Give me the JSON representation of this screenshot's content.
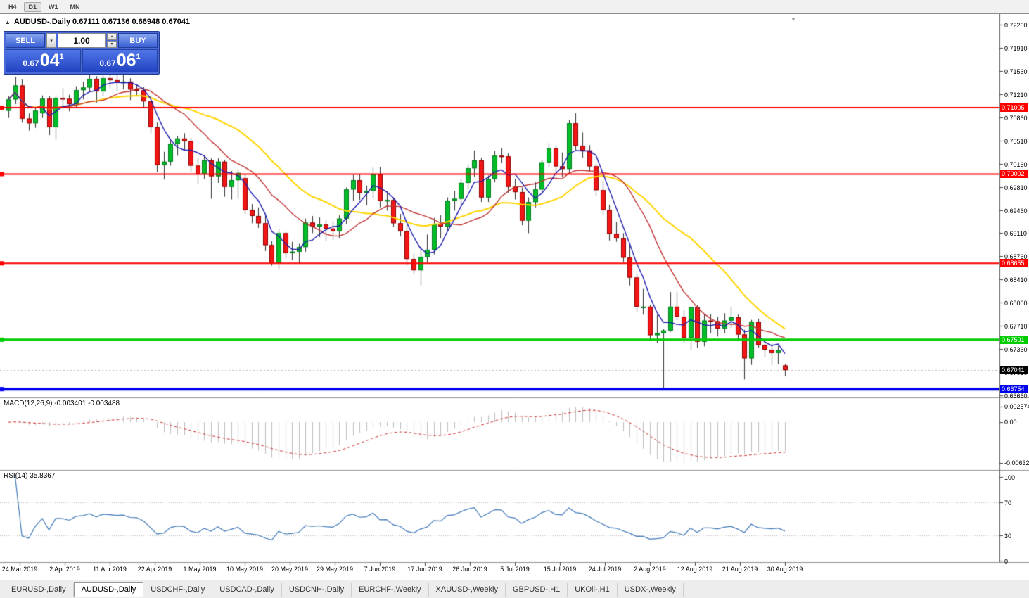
{
  "toolbar": {
    "timeframes": [
      "H4",
      "D1",
      "W1",
      "MN"
    ],
    "active": "D1"
  },
  "chart": {
    "title_text": "AUDUSD-,Daily 0.67111 0.67136 0.66948 0.67041",
    "symbol": "AUDUSD-",
    "period": "Daily",
    "ohlc": {
      "open": "0.67111",
      "high": "0.67136",
      "low": "0.66948",
      "close": "0.67041"
    },
    "price_axis": {
      "top_value": 0.7226,
      "bottom_value": 0.6666,
      "ticks": [
        "0.72260",
        "0.71910",
        "0.71560",
        "0.71210",
        "0.70860",
        "0.70510",
        "0.70160",
        "0.69810",
        "0.69460",
        "0.69110",
        "0.68760",
        "0.68410",
        "0.68060",
        "0.67710",
        "0.67360",
        "0.67010",
        "0.66660"
      ]
    },
    "levels": [
      {
        "label": "0.71005",
        "value": 0.71005,
        "color": "#ff0000",
        "width": 2
      },
      {
        "label": "0.70002",
        "value": 0.70002,
        "color": "#ff0000",
        "width": 2
      },
      {
        "label": "0.68655",
        "value": 0.68655,
        "color": "#ff0000",
        "width": 2
      },
      {
        "label": "0.67501",
        "value": 0.67501,
        "color": "#00cc00",
        "width": 3
      },
      {
        "label": "0.66754",
        "value": 0.66754,
        "color": "#0000f0",
        "width": 4
      }
    ],
    "current_price": {
      "label": "0.67041",
      "value": 0.67041,
      "bg": "#000000"
    }
  },
  "trade": {
    "sell_label": "SELL",
    "buy_label": "BUY",
    "volume": "1.00",
    "sell_price": {
      "prefix": "0.67",
      "pips": "04",
      "point": "1"
    },
    "buy_price": {
      "prefix": "0.67",
      "pips": "06",
      "point": "1"
    }
  },
  "icons": {
    "collapse": "▲",
    "volume_dropdown": "▾",
    "spin_up": "▴",
    "spin_down": "▾",
    "chart_shift": "▼"
  },
  "macd": {
    "header": "MACD(12,26,9) -0.003401 -0.003488",
    "axis": [
      "0.0025740",
      "0.00",
      "-0.0063260"
    ]
  },
  "rsi": {
    "header": "RSI(14) 35.8367",
    "axis": [
      "100",
      "70",
      "30",
      "0"
    ]
  },
  "date_axis": {
    "labels": [
      "24 Mar 2019",
      "2 Apr 2019",
      "11 Apr 2019",
      "22 Apr 2019",
      "1 May 2019",
      "10 May 2019",
      "20 May 2019",
      "29 May 2019",
      "7 Jun 2019",
      "17 Jun 2019",
      "26 Jun 2019",
      "5 Jul 2019",
      "15 Jul 2019",
      "24 Jul 2019",
      "2 Aug 2019",
      "12 Aug 2019",
      "21 Aug 2019",
      "30 Aug 2019"
    ]
  },
  "tabs": {
    "active_index": 1,
    "items": [
      "EURUSD-,Daily",
      "AUDUSD-,Daily",
      "USDCHF-,Daily",
      "USDCAD-,Daily",
      "USDCNH-,Daily",
      "EURCHF-,Weekly",
      "XAUUSD-,Weekly",
      "GBPUSD-,H1",
      "UKOil-,H1",
      "USDX-,Weekly"
    ]
  },
  "chart_data": {
    "type": "candlestick",
    "symbol": "AUDUSD",
    "timeframe": "D1",
    "title": "AUDUSD-,Daily",
    "ylim": [
      0.6666,
      0.7226
    ],
    "candles": [
      [
        0.7096,
        0.7118,
        0.7085,
        0.7113
      ],
      [
        0.7113,
        0.7147,
        0.7106,
        0.7134
      ],
      [
        0.7134,
        0.7143,
        0.7078,
        0.7084
      ],
      [
        0.7084,
        0.7092,
        0.7066,
        0.7077
      ],
      [
        0.7077,
        0.7102,
        0.707,
        0.7096
      ],
      [
        0.7092,
        0.7119,
        0.7085,
        0.7114
      ],
      [
        0.7114,
        0.7118,
        0.7059,
        0.7071
      ],
      [
        0.7071,
        0.7119,
        0.7052,
        0.7115
      ],
      [
        0.7115,
        0.713,
        0.7099,
        0.7114
      ],
      [
        0.7114,
        0.712,
        0.7095,
        0.7106
      ],
      [
        0.7106,
        0.7133,
        0.71,
        0.7127
      ],
      [
        0.7127,
        0.714,
        0.7113,
        0.7131
      ],
      [
        0.7131,
        0.715,
        0.7124,
        0.7144
      ],
      [
        0.7144,
        0.7148,
        0.7108,
        0.7125
      ],
      [
        0.7125,
        0.715,
        0.7118,
        0.7145
      ],
      [
        0.7145,
        0.7155,
        0.713,
        0.7142
      ],
      [
        0.7142,
        0.7151,
        0.7125,
        0.7138
      ],
      [
        0.7138,
        0.7152,
        0.7128,
        0.714
      ],
      [
        0.714,
        0.7145,
        0.7112,
        0.7128
      ],
      [
        0.7128,
        0.7135,
        0.7118,
        0.7127
      ],
      [
        0.7127,
        0.7132,
        0.71,
        0.711
      ],
      [
        0.711,
        0.7119,
        0.7062,
        0.7071
      ],
      [
        0.7071,
        0.7078,
        0.7003,
        0.7014
      ],
      [
        0.7014,
        0.7034,
        0.6992,
        0.7019
      ],
      [
        0.7019,
        0.7053,
        0.7013,
        0.7046
      ],
      [
        0.7046,
        0.7058,
        0.7028,
        0.7054
      ],
      [
        0.7054,
        0.7062,
        0.7036,
        0.705
      ],
      [
        0.705,
        0.7055,
        0.7004,
        0.7013
      ],
      [
        0.7013,
        0.7024,
        0.6985,
        0.7
      ],
      [
        0.7,
        0.7029,
        0.6993,
        0.7021
      ],
      [
        0.7021,
        0.7024,
        0.6963,
        0.6997
      ],
      [
        0.6997,
        0.7024,
        0.6987,
        0.7019
      ],
      [
        0.7019,
        0.7022,
        0.6966,
        0.6981
      ],
      [
        0.6981,
        0.7005,
        0.6962,
        0.6991
      ],
      [
        0.6991,
        0.7007,
        0.6963,
        0.7002
      ],
      [
        0.6994,
        0.7,
        0.694,
        0.6946
      ],
      [
        0.6946,
        0.6955,
        0.6926,
        0.6937
      ],
      [
        0.6937,
        0.695,
        0.6919,
        0.6926
      ],
      [
        0.6926,
        0.6937,
        0.6884,
        0.6893
      ],
      [
        0.6893,
        0.6899,
        0.6862,
        0.6866
      ],
      [
        0.6866,
        0.6917,
        0.6856,
        0.6911
      ],
      [
        0.6911,
        0.6913,
        0.6873,
        0.6881
      ],
      [
        0.6881,
        0.6898,
        0.687,
        0.6883
      ],
      [
        0.6883,
        0.6895,
        0.6865,
        0.689
      ],
      [
        0.689,
        0.6933,
        0.6883,
        0.6927
      ],
      [
        0.6927,
        0.6937,
        0.6911,
        0.6921
      ],
      [
        0.6921,
        0.6935,
        0.6905,
        0.6924
      ],
      [
        0.6924,
        0.6931,
        0.6899,
        0.6918
      ],
      [
        0.6918,
        0.6929,
        0.6901,
        0.6914
      ],
      [
        0.6914,
        0.6938,
        0.6903,
        0.6933
      ],
      [
        0.6933,
        0.698,
        0.6925,
        0.6977
      ],
      [
        0.6977,
        0.6999,
        0.696,
        0.6991
      ],
      [
        0.6991,
        0.7,
        0.6961,
        0.6972
      ],
      [
        0.6972,
        0.6983,
        0.6953,
        0.6975
      ],
      [
        0.6975,
        0.701,
        0.6963,
        0.7
      ],
      [
        0.7,
        0.7011,
        0.695,
        0.696
      ],
      [
        0.696,
        0.6974,
        0.6945,
        0.6961
      ],
      [
        0.6961,
        0.6965,
        0.6921,
        0.6926
      ],
      [
        0.6926,
        0.694,
        0.6906,
        0.6914
      ],
      [
        0.6914,
        0.6923,
        0.6862,
        0.6872
      ],
      [
        0.6872,
        0.688,
        0.6849,
        0.6855
      ],
      [
        0.6855,
        0.6891,
        0.6832,
        0.6875
      ],
      [
        0.6875,
        0.6909,
        0.6866,
        0.6886
      ],
      [
        0.6886,
        0.6934,
        0.6879,
        0.6925
      ],
      [
        0.6925,
        0.6938,
        0.6903,
        0.6921
      ],
      [
        0.6921,
        0.6965,
        0.6914,
        0.696
      ],
      [
        0.696,
        0.6975,
        0.6945,
        0.6963
      ],
      [
        0.6963,
        0.6993,
        0.6952,
        0.6987
      ],
      [
        0.6987,
        0.7015,
        0.6978,
        0.7009
      ],
      [
        0.7009,
        0.7036,
        0.6996,
        0.7021
      ],
      [
        0.7021,
        0.7025,
        0.6958,
        0.6965
      ],
      [
        0.6965,
        0.6998,
        0.6958,
        0.6993
      ],
      [
        0.6993,
        0.7035,
        0.6988,
        0.7028
      ],
      [
        0.7028,
        0.7039,
        0.7017,
        0.7027
      ],
      [
        0.7027,
        0.7032,
        0.6972,
        0.6981
      ],
      [
        0.6981,
        0.6993,
        0.6962,
        0.6973
      ],
      [
        0.6973,
        0.698,
        0.6923,
        0.693
      ],
      [
        0.693,
        0.6965,
        0.6911,
        0.6958
      ],
      [
        0.6958,
        0.6988,
        0.695,
        0.6977
      ],
      [
        0.6977,
        0.7022,
        0.6971,
        0.7018
      ],
      [
        0.7018,
        0.7047,
        0.7011,
        0.7039
      ],
      [
        0.7039,
        0.7043,
        0.7001,
        0.7012
      ],
      [
        0.7012,
        0.7033,
        0.6996,
        0.7008
      ],
      [
        0.7008,
        0.7082,
        0.7001,
        0.7077
      ],
      [
        0.7077,
        0.7092,
        0.7037,
        0.7043
      ],
      [
        0.7043,
        0.7063,
        0.7025,
        0.7036
      ],
      [
        0.7036,
        0.7044,
        0.7004,
        0.7012
      ],
      [
        0.7012,
        0.7016,
        0.6968,
        0.6976
      ],
      [
        0.6976,
        0.699,
        0.6938,
        0.6946
      ],
      [
        0.6946,
        0.6954,
        0.69,
        0.691
      ],
      [
        0.691,
        0.6928,
        0.6898,
        0.6903
      ],
      [
        0.6903,
        0.6911,
        0.6867,
        0.6874
      ],
      [
        0.6874,
        0.6894,
        0.6832,
        0.6844
      ],
      [
        0.6844,
        0.685,
        0.6792,
        0.68
      ],
      [
        0.68,
        0.6827,
        0.6788,
        0.68
      ],
      [
        0.68,
        0.6803,
        0.6748,
        0.6757
      ],
      [
        0.6757,
        0.6788,
        0.6745,
        0.676
      ],
      [
        0.676,
        0.6766,
        0.6677,
        0.6764
      ],
      [
        0.6764,
        0.6822,
        0.6762,
        0.68
      ],
      [
        0.68,
        0.6822,
        0.678,
        0.6785
      ],
      [
        0.6785,
        0.6795,
        0.6745,
        0.6753
      ],
      [
        0.6753,
        0.68,
        0.6735,
        0.6799
      ],
      [
        0.6799,
        0.6802,
        0.6738,
        0.6747
      ],
      [
        0.6747,
        0.6789,
        0.674,
        0.6779
      ],
      [
        0.6779,
        0.6789,
        0.676,
        0.6778
      ],
      [
        0.6778,
        0.6785,
        0.6755,
        0.6767
      ],
      [
        0.6767,
        0.679,
        0.676,
        0.6779
      ],
      [
        0.6779,
        0.68,
        0.6768,
        0.6784
      ],
      [
        0.6784,
        0.6788,
        0.6748,
        0.6758
      ],
      [
        0.6758,
        0.6765,
        0.669,
        0.6722
      ],
      [
        0.6722,
        0.678,
        0.6712,
        0.6777
      ],
      [
        0.6777,
        0.6782,
        0.6738,
        0.6742
      ],
      [
        0.6742,
        0.6752,
        0.6724,
        0.6735
      ],
      [
        0.6735,
        0.6744,
        0.6712,
        0.673
      ],
      [
        0.673,
        0.6741,
        0.6713,
        0.6734
      ],
      [
        0.67111,
        0.67136,
        0.66948,
        0.67041
      ]
    ],
    "moving_averages": [
      {
        "name": "ma-fast",
        "period": 5,
        "color": "#1c1cb0",
        "width": 1.4
      },
      {
        "name": "ma-mid",
        "period": 13,
        "color": "#c23535",
        "width": 1.4
      },
      {
        "name": "ma-slow",
        "period": 24,
        "color": "#ffd400",
        "width": 2
      }
    ],
    "macd": {
      "fast": 12,
      "slow": 26,
      "signal": 9,
      "values": [
        -0.003401,
        -0.003488
      ],
      "hist_color": "#bcbcbc",
      "signal_color": "#cc3030"
    },
    "rsi": {
      "period": 14,
      "value": 35.8367,
      "color": "#3e78b8",
      "levels": [
        70,
        30
      ]
    },
    "colors": {
      "bull": "#00be28",
      "bull_border": "#007a1e",
      "bear": "#f21616",
      "bear_border": "#8f0000",
      "wick": "#303030",
      "bid_line": "#b8b8b8"
    }
  }
}
